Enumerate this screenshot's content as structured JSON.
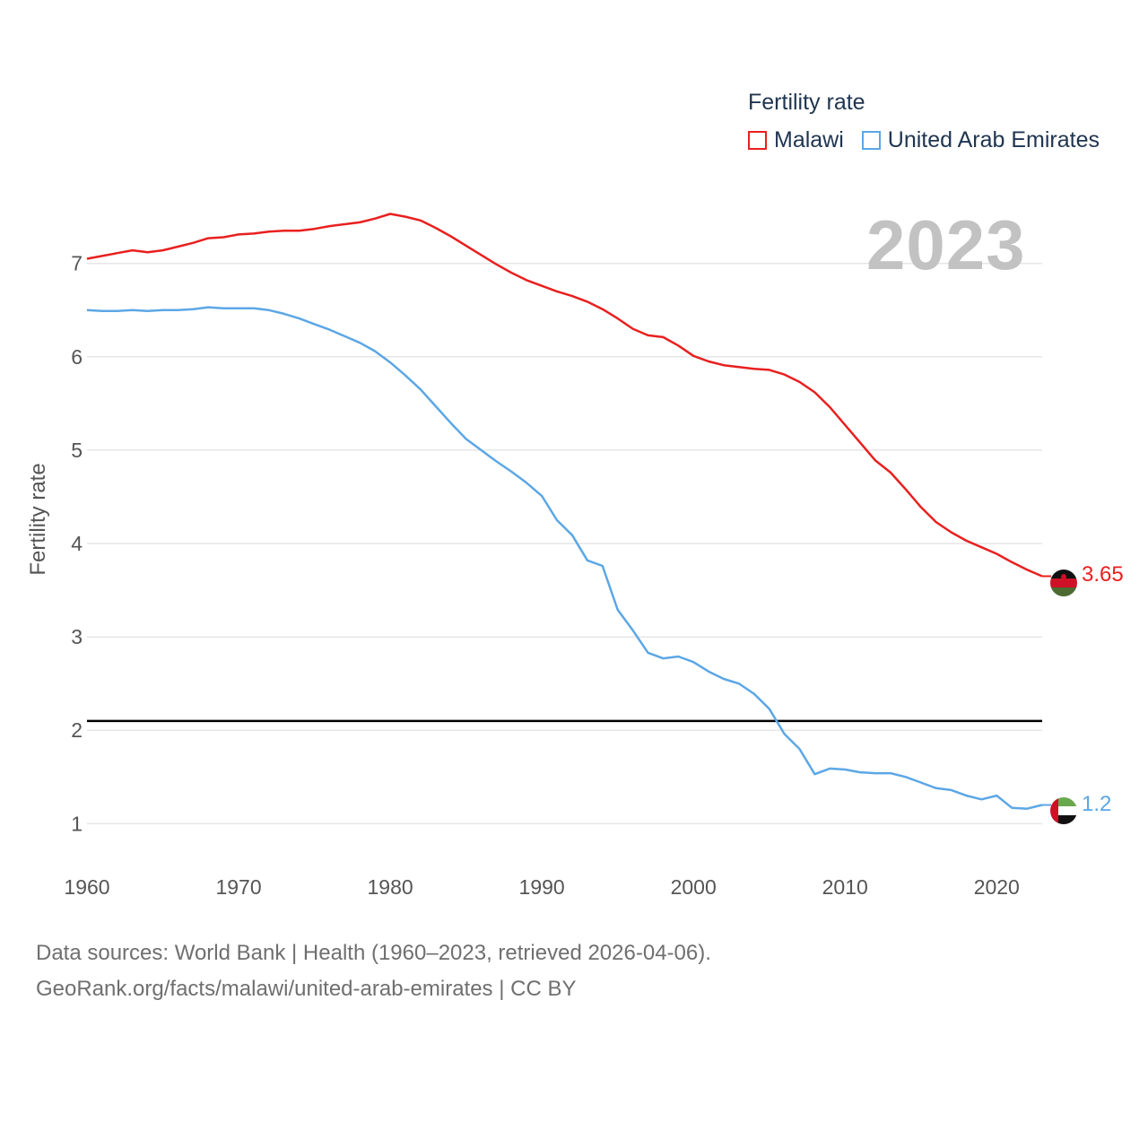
{
  "chart_data": {
    "type": "line",
    "title": "",
    "legend_title": "Fertility rate",
    "year_label": "2023",
    "xlabel": "",
    "ylabel": "Fertility rate",
    "xlim": [
      1960,
      2023
    ],
    "ylim": [
      0.6,
      7.9
    ],
    "xticks": [
      1960,
      1970,
      1980,
      1990,
      2000,
      2010,
      2020
    ],
    "yticks": [
      1,
      2,
      3,
      4,
      5,
      6,
      7
    ],
    "reference_line": 2.1,
    "x": [
      1960,
      1961,
      1962,
      1963,
      1964,
      1965,
      1966,
      1967,
      1968,
      1969,
      1970,
      1971,
      1972,
      1973,
      1974,
      1975,
      1976,
      1977,
      1978,
      1979,
      1980,
      1981,
      1982,
      1983,
      1984,
      1985,
      1986,
      1987,
      1988,
      1989,
      1990,
      1991,
      1992,
      1993,
      1994,
      1995,
      1996,
      1997,
      1998,
      1999,
      2000,
      2001,
      2002,
      2003,
      2004,
      2005,
      2006,
      2007,
      2008,
      2009,
      2010,
      2011,
      2012,
      2013,
      2014,
      2015,
      2016,
      2017,
      2018,
      2019,
      2020,
      2021,
      2022,
      2023
    ],
    "series": [
      {
        "name": "Malawi",
        "color": "#e8201f",
        "end_label": "3.65",
        "values": [
          7.05,
          7.08,
          7.11,
          7.14,
          7.12,
          7.14,
          7.18,
          7.22,
          7.27,
          7.28,
          7.31,
          7.32,
          7.34,
          7.35,
          7.35,
          7.37,
          7.4,
          7.42,
          7.44,
          7.48,
          7.53,
          7.5,
          7.46,
          7.38,
          7.29,
          7.19,
          7.09,
          6.99,
          6.9,
          6.82,
          6.76,
          6.7,
          6.65,
          6.59,
          6.51,
          6.41,
          6.3,
          6.23,
          6.21,
          6.12,
          6.01,
          5.95,
          5.91,
          5.89,
          5.87,
          5.86,
          5.81,
          5.73,
          5.62,
          5.46,
          5.27,
          5.08,
          4.89,
          4.76,
          4.58,
          4.39,
          4.23,
          4.12,
          4.03,
          3.96,
          3.89,
          3.8,
          3.72,
          3.65
        ]
      },
      {
        "name": "United Arab Emirates",
        "color": "#5ca7e5",
        "end_label": "1.2",
        "values": [
          6.5,
          6.49,
          6.49,
          6.5,
          6.49,
          6.5,
          6.5,
          6.51,
          6.53,
          6.52,
          6.52,
          6.52,
          6.5,
          6.46,
          6.41,
          6.35,
          6.29,
          6.22,
          6.15,
          6.06,
          5.94,
          5.8,
          5.65,
          5.47,
          5.29,
          5.12,
          5.0,
          4.88,
          4.77,
          4.65,
          4.51,
          4.25,
          4.09,
          3.82,
          3.76,
          3.29,
          3.07,
          2.83,
          2.77,
          2.79,
          2.73,
          2.63,
          2.55,
          2.5,
          2.39,
          2.23,
          1.96,
          1.8,
          1.53,
          1.59,
          1.58,
          1.55,
          1.54,
          1.54,
          1.5,
          1.44,
          1.38,
          1.36,
          1.3,
          1.26,
          1.3,
          1.17,
          1.16,
          1.2
        ]
      }
    ]
  },
  "source": {
    "line1": "Data sources: World Bank | Health (1960–2023, retrieved 2026-04-06).",
    "line2": "GeoRank.org/facts/malawi/united-arab-emirates | CC BY"
  },
  "colors": {
    "grid": "#e6e6e6",
    "reference": "#000000",
    "year_label": "#c2c2c2",
    "text": "#555555"
  }
}
